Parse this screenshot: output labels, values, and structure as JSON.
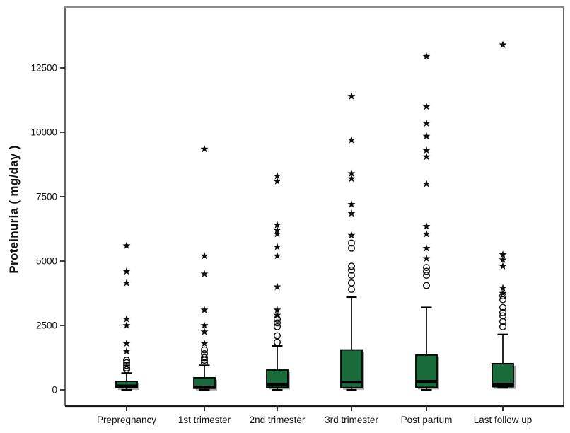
{
  "figure": {
    "background": "#ffffff"
  },
  "colors": {
    "box_fill": "#1A6B3C",
    "box_border": "#000000",
    "median": "#000000",
    "whisker": "#000000",
    "outlier": "#0d0d0d",
    "shadow": "#a8a8a8",
    "frame": "#3f3f3f",
    "frame_top": "#8a8a8a",
    "tick": "#2b2b2b",
    "text": "#111111"
  },
  "chart_data": {
    "type": "boxplot",
    "title": "",
    "xlabel": "",
    "ylabel": "Proteinuria ( mg/day )",
    "ylim": [
      -600,
      14800
    ],
    "yticks": [
      0,
      2500,
      5000,
      7500,
      10000,
      12500
    ],
    "grid": "off",
    "legend": "none",
    "categories": [
      "Prepregnancy",
      "1st trimester",
      "2nd trimester",
      "3rd trimester",
      "Post partum",
      "Last follow up"
    ],
    "boxes": [
      {
        "category": "Prepregnancy",
        "whisker_low": 0,
        "q1": 80,
        "median": 150,
        "q3": 330,
        "whisker_high": 650,
        "outliers_circle": [
          780,
          850,
          950,
          1050,
          1150
        ],
        "outliers_star": [
          1500,
          1800,
          2500,
          2750,
          4150,
          4600,
          5600
        ]
      },
      {
        "category": "1st trimester",
        "whisker_low": 0,
        "q1": 60,
        "median": 110,
        "q3": 470,
        "whisker_high": 950,
        "outliers_circle": [
          1050,
          1150,
          1250,
          1400,
          1550
        ],
        "outliers_star": [
          1800,
          2250,
          2500,
          3100,
          4500,
          5200,
          9350
        ]
      },
      {
        "category": "2nd trimester",
        "whisker_low": 0,
        "q1": 100,
        "median": 210,
        "q3": 770,
        "whisker_high": 1700,
        "outliers_circle": [
          1850,
          2100,
          2450,
          2600,
          2750
        ],
        "outliers_star": [
          2900,
          3100,
          4000,
          5200,
          5550,
          6050,
          6200,
          6400,
          8100,
          8300
        ]
      },
      {
        "category": "3rd trimester",
        "whisker_low": 0,
        "q1": 90,
        "median": 300,
        "q3": 1550,
        "whisker_high": 3600,
        "outliers_circle": [
          3900,
          4150,
          4450,
          4650,
          4800,
          5500,
          5700
        ],
        "outliers_star": [
          6000,
          6850,
          7200,
          8200,
          8400,
          9700,
          11400
        ]
      },
      {
        "category": "Post partum",
        "whisker_low": 0,
        "q1": 100,
        "median": 330,
        "q3": 1350,
        "whisker_high": 3200,
        "outliers_circle": [
          4050,
          4450,
          4600,
          4750
        ],
        "outliers_star": [
          5100,
          5500,
          6050,
          6350,
          8000,
          9050,
          9300,
          9850,
          10350,
          11000,
          12950
        ]
      },
      {
        "category": "Last follow up",
        "whisker_low": 80,
        "q1": 120,
        "median": 220,
        "q3": 1020,
        "whisker_high": 2150,
        "outliers_circle": [
          2450,
          2650,
          2870,
          3000,
          3200,
          3500,
          3650
        ],
        "outliers_star": [
          3750,
          3950,
          4800,
          5050,
          5250,
          13400
        ]
      }
    ]
  }
}
